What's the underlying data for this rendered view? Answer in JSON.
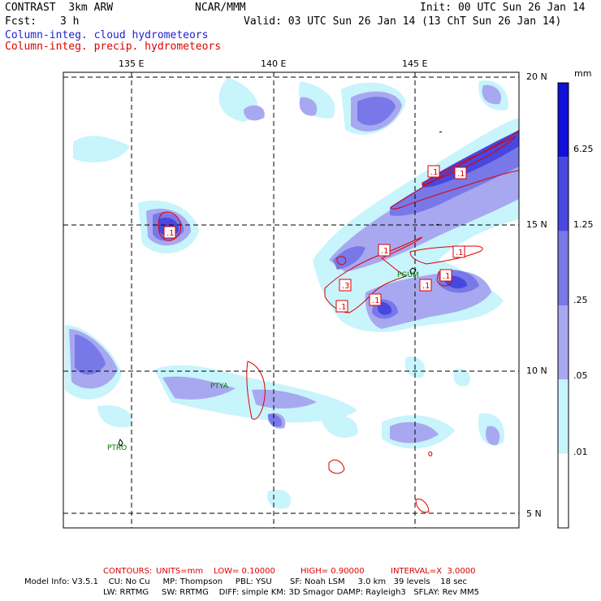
{
  "header": {
    "model": "CONTRAST  3km ARW",
    "org": "NCAR/MMM",
    "init": "Init: 00 UTC Sun 26 Jan 14",
    "fcst_label": "Fcst:",
    "fcst_value": "3 h",
    "valid": "Valid: 03 UTC Sun 26 Jan 14 (13 ChT Sun 26 Jan 14)",
    "field_fill": "Column-integ. cloud hydrometeors",
    "field_contour": "Column-integ. precip. hydrometeors"
  },
  "lon_ticks": [
    "135 E",
    "140 E",
    "145 E"
  ],
  "lat_ticks": [
    "20 N",
    "15 N",
    "10 N",
    "5 N"
  ],
  "colorbar": {
    "unit": "mm",
    "levels": [
      "6.25",
      "1.25",
      ".25",
      ".05",
      ".01"
    ],
    "colors": [
      "#1010d8",
      "#4848e0",
      "#7878e8",
      "#a8a8f0",
      "#c8f4fc",
      "#ffffff"
    ]
  },
  "stations": [
    "PGUM",
    "PTYA",
    "PTRO"
  ],
  "contour_labels": [
    ".1",
    ".1",
    ".1",
    ".1",
    ".1",
    ".3",
    ".1",
    ".1",
    ".1",
    ".1"
  ],
  "footer": {
    "contours_label": "CONTOURS:",
    "units": "UNITS=mm",
    "low": "LOW= 0.10000",
    "high": "HIGH= 0.90000",
    "interval": "INTERVAL=X  3.0000",
    "model_info_1": "Model Info: V3.5.1    CU: No Cu     MP: Thompson     PBL: YSU       SF: Noah LSM     3.0 km   39 levels    18 sec",
    "model_info_2": "LW: RRTMG     SW: RRTMG    DIFF: simple KM: 3D Smagor DAMP: Rayleigh3   SFLAY: Rev MM5"
  }
}
